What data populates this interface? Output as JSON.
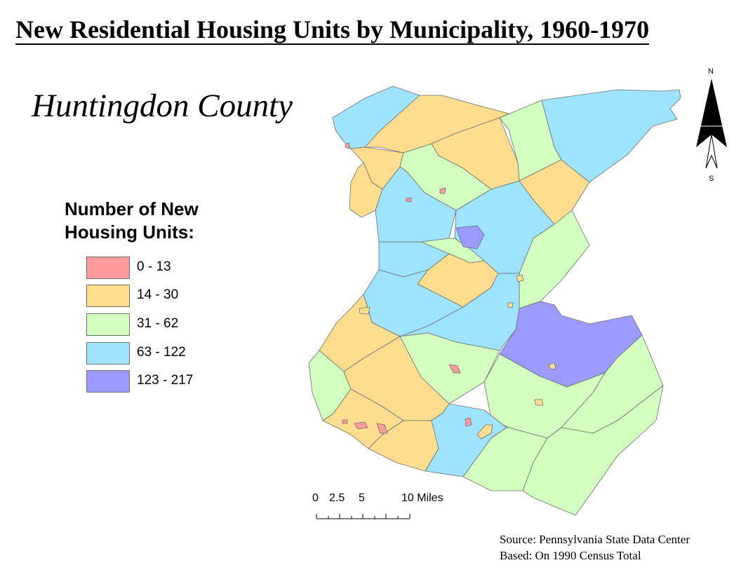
{
  "title": "New Residential Housing Units by Municipality, 1960-1970",
  "county_label": "Huntingdon County",
  "legend": {
    "title_line1": "Number of New",
    "title_line2": "Housing Units:",
    "classes": [
      {
        "label": "0 - 13",
        "color": "#ff9a9a"
      },
      {
        "label": "14 - 30",
        "color": "#ffdd8e"
      },
      {
        "label": "31 - 62",
        "color": "#d2ffbf"
      },
      {
        "label": "63 - 122",
        "color": "#9ee3ff"
      },
      {
        "label": "123 - 217",
        "color": "#9a9aff"
      }
    ]
  },
  "scale_bar": {
    "ticks": [
      "0",
      "2.5",
      "5",
      "10 Miles"
    ]
  },
  "north_arrow": {
    "north": "N",
    "south": "S"
  },
  "source": {
    "line1": "Source: Pennsylvania State Data Center",
    "line2": "Based: On 1990 Census Total"
  }
}
